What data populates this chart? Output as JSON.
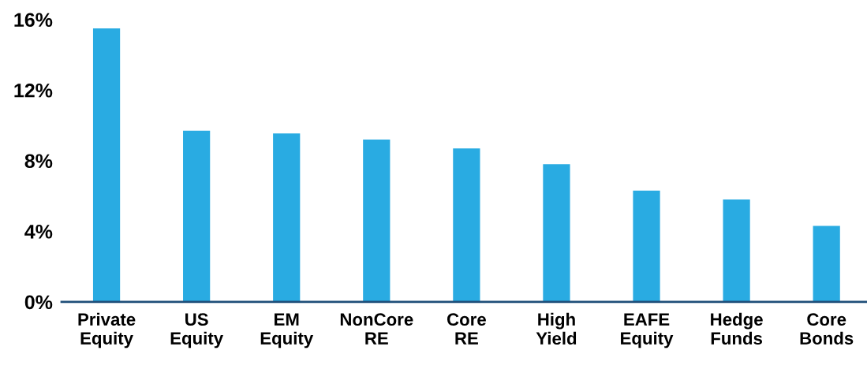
{
  "chart_data": {
    "type": "bar",
    "categories": [
      "Private\nEquity",
      "US\nEquity",
      "EM\nEquity",
      "NonCore\nRE",
      "Core\nRE",
      "High\nYield",
      "EAFE\nEquity",
      "Hedge\nFunds",
      "Core\nBonds"
    ],
    "values": [
      15.5,
      9.7,
      9.55,
      9.2,
      8.7,
      7.8,
      6.3,
      5.8,
      4.3
    ],
    "color": "#29abe2",
    "ylim": [
      0,
      16
    ],
    "yticks": [
      {
        "value": 0,
        "label": "0%"
      },
      {
        "value": 4,
        "label": "4%"
      },
      {
        "value": 8,
        "label": "8%"
      },
      {
        "value": 12,
        "label": "12%"
      },
      {
        "value": 16,
        "label": "16%"
      }
    ],
    "grid": false,
    "legend": false
  }
}
